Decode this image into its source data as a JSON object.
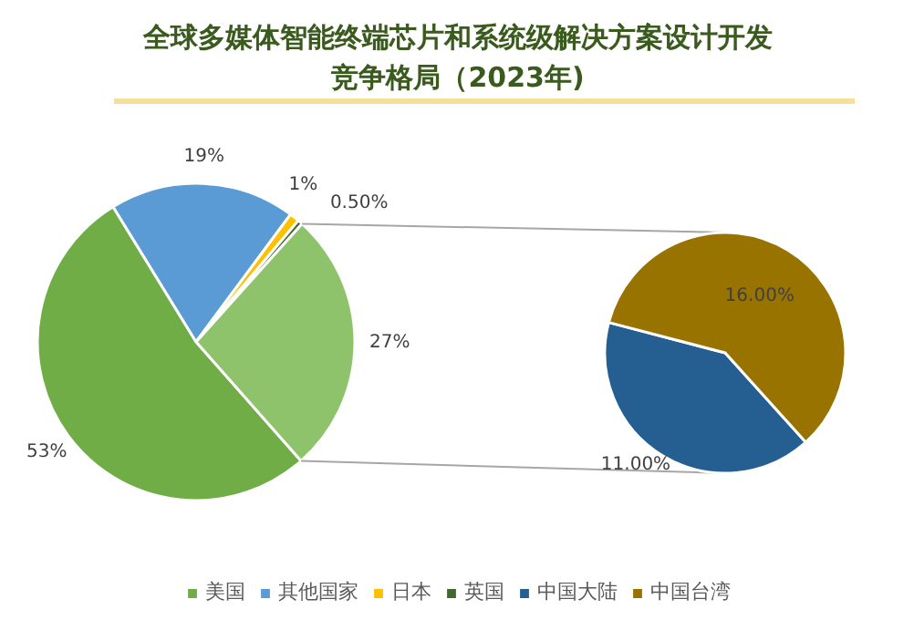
{
  "chart_data": [
    {
      "type": "pie",
      "title": "全球多媒体智能终端芯片和系统级解决方案设计开发竞争格局（2023年)",
      "categories": [
        "美国",
        "其他国家",
        "日本",
        "英国",
        null
      ],
      "values": [
        53,
        19,
        1,
        0.5,
        27
      ],
      "colors": [
        "#70ad47",
        "#5b9bd5",
        "#ffc000",
        "#43682b",
        "#8fc36b"
      ],
      "value_labels": [
        "53%",
        "19%",
        "1%",
        "0.50%",
        "27%"
      ],
      "legend": "bottom"
    },
    {
      "type": "pie",
      "categories": [
        "中国大陆",
        "中国台湾"
      ],
      "values": [
        11,
        16
      ],
      "colors": [
        "#255e91",
        "#997300"
      ],
      "value_labels": [
        "11.00%",
        "16.00%"
      ],
      "legend": "bottom"
    }
  ]
}
